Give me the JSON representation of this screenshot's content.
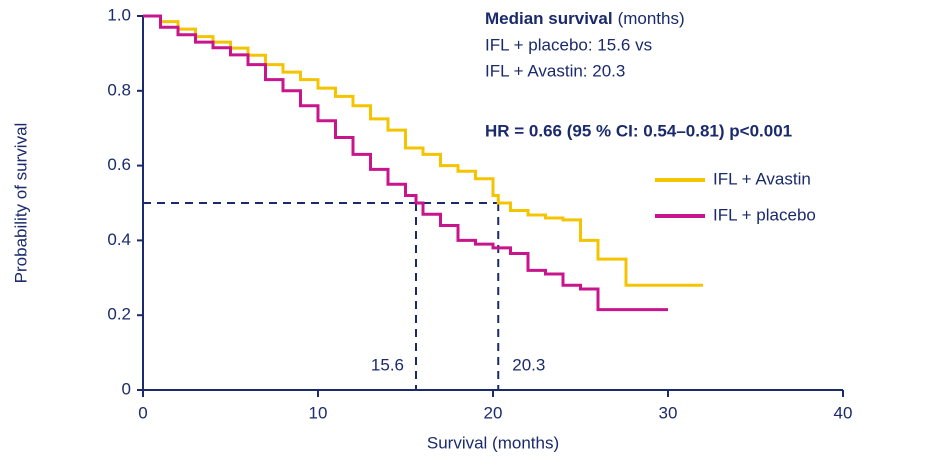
{
  "chart_data": {
    "type": "line",
    "step": true,
    "x_label": "Survival (months)",
    "y_label": "Probability of survival",
    "xlim": [
      0,
      40
    ],
    "ylim": [
      0,
      1.0
    ],
    "xticks": [
      0,
      10,
      20,
      30,
      40
    ],
    "yticks": [
      0,
      0.2,
      0.4,
      0.6,
      0.8,
      {
        "value": 1.0,
        "label": "1.0"
      }
    ],
    "legend": "right",
    "series": [
      {
        "name": "IFL + Avastin",
        "color": "#f5c400",
        "x": [
          0,
          1,
          2,
          3,
          4,
          5,
          6,
          7,
          8,
          9,
          10,
          11,
          12,
          13,
          14,
          15,
          16,
          17,
          18,
          19,
          20,
          20.3,
          21,
          22,
          23,
          24,
          25,
          26,
          27,
          27.6,
          32
        ],
        "values": [
          1.0,
          0.985,
          0.965,
          0.945,
          0.93,
          0.914,
          0.895,
          0.87,
          0.85,
          0.83,
          0.807,
          0.785,
          0.76,
          0.725,
          0.695,
          0.647,
          0.63,
          0.6,
          0.585,
          0.565,
          0.52,
          0.5,
          0.48,
          0.468,
          0.46,
          0.455,
          0.4,
          0.35,
          0.35,
          0.28,
          0.28
        ]
      },
      {
        "name": "IFL + placebo",
        "color": "#c8158c",
        "x": [
          0,
          1,
          2,
          3,
          4,
          5,
          6,
          7,
          8,
          9,
          10,
          11,
          12,
          13,
          14,
          15,
          15.6,
          16,
          17,
          18,
          19,
          20,
          21,
          22,
          23,
          24,
          25,
          26,
          30
        ],
        "values": [
          1.0,
          0.97,
          0.95,
          0.93,
          0.915,
          0.896,
          0.87,
          0.83,
          0.8,
          0.76,
          0.72,
          0.675,
          0.63,
          0.59,
          0.55,
          0.52,
          0.5,
          0.47,
          0.44,
          0.4,
          0.39,
          0.38,
          0.365,
          0.32,
          0.31,
          0.28,
          0.27,
          0.215,
          0.215
        ]
      }
    ],
    "medians": [
      15.6,
      20.3
    ],
    "median_y": 0.5,
    "annotations": {
      "heading_bold": "Median survival",
      "heading_rest": "(months)",
      "line1": "IFL + placebo: 15.6 vs",
      "line2": "IFL + Avastin: 20.3",
      "hr": "HR = 0.66 (95 % CI: 0.54–0.81) p<0.001"
    }
  }
}
